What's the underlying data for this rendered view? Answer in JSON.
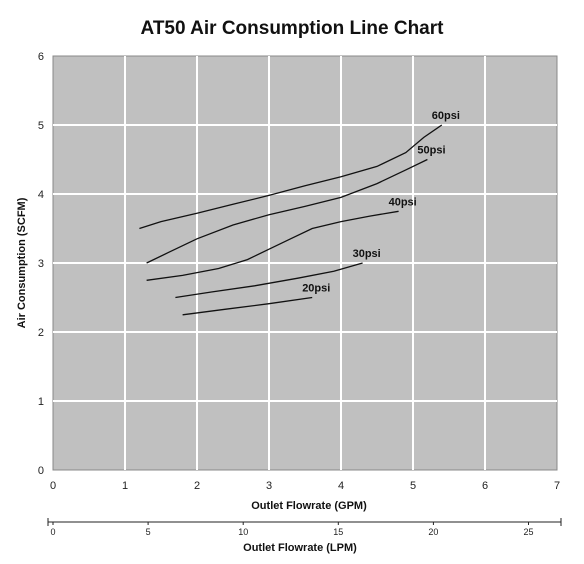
{
  "chart_data": {
    "type": "line",
    "title": "AT50 Air Consumption Line Chart",
    "xlabel": "Outlet Flowrate (GPM)",
    "ylabel": "Air Consumption (SCFM)",
    "xlim": [
      0,
      7
    ],
    "ylim": [
      0,
      6
    ],
    "x_ticks": [
      0,
      1,
      2,
      3,
      4,
      5,
      6,
      7
    ],
    "y_ticks": [
      0,
      1,
      2,
      3,
      4,
      5,
      6
    ],
    "grid": true,
    "plot_background": "#c0c0c0",
    "grid_color": "#ffffff",
    "line_color": "#111111",
    "series": [
      {
        "name": "60psi",
        "points": [
          [
            1.2,
            3.5
          ],
          [
            1.5,
            3.6
          ],
          [
            2.0,
            3.72
          ],
          [
            2.5,
            3.85
          ],
          [
            3.0,
            3.98
          ],
          [
            3.5,
            4.12
          ],
          [
            4.0,
            4.25
          ],
          [
            4.5,
            4.4
          ],
          [
            4.9,
            4.6
          ],
          [
            5.15,
            4.82
          ],
          [
            5.4,
            5.0
          ]
        ]
      },
      {
        "name": "50psi",
        "points": [
          [
            1.3,
            3.0
          ],
          [
            1.6,
            3.15
          ],
          [
            2.0,
            3.35
          ],
          [
            2.5,
            3.55
          ],
          [
            3.0,
            3.7
          ],
          [
            3.5,
            3.82
          ],
          [
            4.0,
            3.95
          ],
          [
            4.5,
            4.15
          ],
          [
            4.9,
            4.35
          ],
          [
            5.2,
            4.5
          ]
        ]
      },
      {
        "name": "40psi",
        "points": [
          [
            1.3,
            2.75
          ],
          [
            1.8,
            2.82
          ],
          [
            2.3,
            2.92
          ],
          [
            2.7,
            3.05
          ],
          [
            3.0,
            3.2
          ],
          [
            3.3,
            3.35
          ],
          [
            3.6,
            3.5
          ],
          [
            4.0,
            3.6
          ],
          [
            4.4,
            3.68
          ],
          [
            4.8,
            3.75
          ]
        ]
      },
      {
        "name": "30psi",
        "points": [
          [
            1.7,
            2.5
          ],
          [
            2.2,
            2.58
          ],
          [
            2.8,
            2.67
          ],
          [
            3.4,
            2.78
          ],
          [
            3.9,
            2.88
          ],
          [
            4.3,
            3.0
          ]
        ]
      },
      {
        "name": "20psi",
        "points": [
          [
            1.8,
            2.25
          ],
          [
            2.4,
            2.33
          ],
          [
            3.0,
            2.41
          ],
          [
            3.6,
            2.5
          ]
        ]
      }
    ],
    "secondary_axis": {
      "label": "Outlet Flowrate (LPM)",
      "ticks": [
        0,
        5,
        10,
        15,
        20,
        25
      ],
      "gpm_per_unit": 0.264172
    }
  }
}
